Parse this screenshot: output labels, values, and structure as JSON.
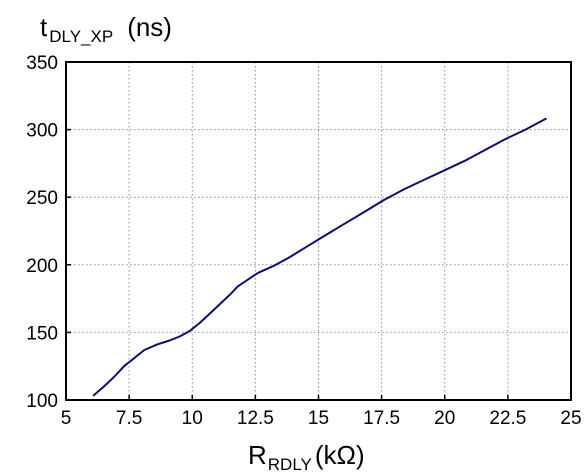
{
  "chart_data": {
    "type": "line",
    "title": "",
    "ylabel": {
      "main": "t",
      "subscript": "DLY_XP",
      "unit": "(ns)"
    },
    "xlabel": {
      "main": "R",
      "subscript": "RDLY",
      "unit": "(kΩ)"
    },
    "xlim": [
      5,
      25
    ],
    "ylim": [
      100,
      350
    ],
    "xticks": [
      5,
      7.5,
      10,
      12.5,
      15,
      17.5,
      20,
      22.5,
      25
    ],
    "xtick_labels": [
      "5",
      "7.5",
      "10",
      "12.5",
      "15",
      "17.5",
      "20",
      "22.5",
      "25"
    ],
    "yticks": [
      100,
      150,
      200,
      250,
      300,
      350
    ],
    "ytick_labels": [
      "100",
      "150",
      "200",
      "250",
      "300",
      "350"
    ],
    "grid": true,
    "line_color": "#0a0f6e",
    "series": [
      {
        "x": [
          6.1,
          6.5,
          6.9,
          7.3,
          7.7,
          8.1,
          8.6,
          9.1,
          9.5,
          9.9,
          10.3,
          10.7,
          11.1,
          11.5,
          11.8,
          12.2,
          12.6,
          13.2,
          13.8,
          14.5,
          15.2,
          16.0,
          16.8,
          17.6,
          18.4,
          19.2,
          20.0,
          20.8,
          21.6,
          22.4,
          23.2,
          24.0
        ],
        "y": [
          103.5,
          110,
          117,
          125,
          131,
          137,
          141,
          144,
          147,
          151,
          157,
          164,
          171,
          178,
          184,
          189,
          194,
          199,
          205,
          213,
          221,
          230,
          239,
          248,
          256,
          263,
          270,
          277,
          285,
          293,
          300,
          308
        ]
      }
    ]
  }
}
